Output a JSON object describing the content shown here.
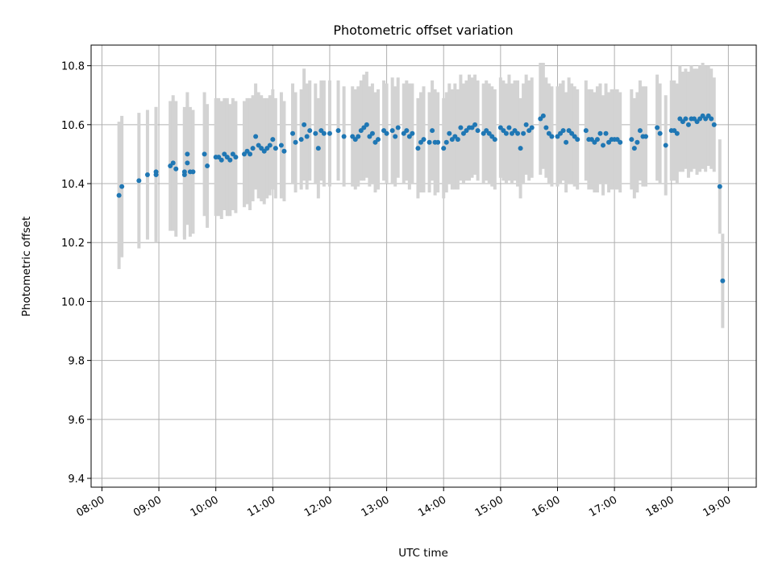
{
  "chart_data": {
    "type": "scatter",
    "title": "Photometric offset variation",
    "xlabel": "UTC time",
    "ylabel": "Photometric offset",
    "x_ticks": [
      "08:00",
      "09:00",
      "10:00",
      "11:00",
      "12:00",
      "13:00",
      "14:00",
      "15:00",
      "16:00",
      "17:00",
      "18:00",
      "19:00"
    ],
    "y_ticks": [
      "9.4",
      "9.6",
      "9.8",
      "10.0",
      "10.2",
      "10.4",
      "10.6",
      "10.8"
    ],
    "xlim_hours": [
      7.81,
      19.49
    ],
    "ylim": [
      9.37,
      10.87
    ],
    "grid": true,
    "colors": {
      "points": "#1f77b4",
      "errorbars": "#d3d3d3",
      "grid": "#b0b0b0"
    },
    "series": [
      {
        "x_hours": [
          8.3,
          8.35,
          8.65,
          8.8,
          8.95,
          8.95,
          9.2,
          9.25,
          9.3,
          9.45,
          9.45,
          9.5,
          9.5,
          9.55,
          9.6,
          9.8,
          9.85,
          10.0,
          10.05,
          10.1,
          10.15,
          10.2,
          10.25,
          10.3,
          10.35,
          10.5,
          10.55,
          10.6,
          10.65,
          10.7,
          10.75,
          10.8,
          10.85,
          10.9,
          10.95,
          11.0,
          11.05,
          11.15,
          11.2,
          11.35,
          11.4,
          11.5,
          11.55,
          11.6,
          11.65,
          11.75,
          11.8,
          11.85,
          11.9,
          12.0,
          12.15,
          12.25,
          12.4,
          12.45,
          12.5,
          12.55,
          12.6,
          12.65,
          12.7,
          12.75,
          12.8,
          12.85,
          12.95,
          13.0,
          13.1,
          13.15,
          13.2,
          13.3,
          13.35,
          13.4,
          13.45,
          13.55,
          13.6,
          13.65,
          13.75,
          13.8,
          13.85,
          13.9,
          14.0,
          14.05,
          14.1,
          14.15,
          14.2,
          14.25,
          14.3,
          14.35,
          14.4,
          14.45,
          14.5,
          14.55,
          14.6,
          14.7,
          14.75,
          14.8,
          14.85,
          14.9,
          15.0,
          15.05,
          15.1,
          15.15,
          15.2,
          15.25,
          15.3,
          15.35,
          15.4,
          15.45,
          15.5,
          15.55,
          15.7,
          15.75,
          15.8,
          15.85,
          15.9,
          16.0,
          16.05,
          16.1,
          16.15,
          16.2,
          16.25,
          16.3,
          16.35,
          16.5,
          16.55,
          16.6,
          16.65,
          16.7,
          16.75,
          16.8,
          16.85,
          16.9,
          16.95,
          17.0,
          17.05,
          17.1,
          17.3,
          17.35,
          17.4,
          17.45,
          17.5,
          17.55,
          17.75,
          17.8,
          17.9,
          18.0,
          18.05,
          18.1,
          18.15,
          18.2,
          18.25,
          18.3,
          18.35,
          18.4,
          18.45,
          18.5,
          18.55,
          18.6,
          18.65,
          18.7,
          18.75,
          18.85,
          18.9
        ],
        "y": [
          10.36,
          10.39,
          10.41,
          10.43,
          10.43,
          10.44,
          10.46,
          10.47,
          10.45,
          10.43,
          10.44,
          10.47,
          10.5,
          10.44,
          10.44,
          10.5,
          10.46,
          10.49,
          10.49,
          10.48,
          10.5,
          10.49,
          10.48,
          10.5,
          10.49,
          10.5,
          10.51,
          10.5,
          10.52,
          10.56,
          10.53,
          10.52,
          10.51,
          10.52,
          10.53,
          10.55,
          10.52,
          10.53,
          10.51,
          10.57,
          10.54,
          10.55,
          10.6,
          10.56,
          10.58,
          10.57,
          10.52,
          10.58,
          10.57,
          10.57,
          10.58,
          10.56,
          10.56,
          10.55,
          10.56,
          10.58,
          10.59,
          10.6,
          10.56,
          10.57,
          10.54,
          10.55,
          10.58,
          10.57,
          10.58,
          10.56,
          10.59,
          10.57,
          10.58,
          10.56,
          10.57,
          10.52,
          10.54,
          10.55,
          10.54,
          10.58,
          10.54,
          10.54,
          10.52,
          10.54,
          10.57,
          10.55,
          10.56,
          10.55,
          10.59,
          10.57,
          10.58,
          10.59,
          10.59,
          10.6,
          10.58,
          10.57,
          10.58,
          10.57,
          10.56,
          10.55,
          10.59,
          10.58,
          10.57,
          10.59,
          10.57,
          10.58,
          10.57,
          10.52,
          10.57,
          10.6,
          10.58,
          10.59,
          10.62,
          10.63,
          10.59,
          10.57,
          10.56,
          10.56,
          10.57,
          10.58,
          10.54,
          10.58,
          10.57,
          10.56,
          10.55,
          10.58,
          10.55,
          10.55,
          10.54,
          10.55,
          10.57,
          10.53,
          10.57,
          10.54,
          10.55,
          10.55,
          10.55,
          10.54,
          10.55,
          10.52,
          10.54,
          10.58,
          10.56,
          10.56,
          10.59,
          10.57,
          10.53,
          10.58,
          10.58,
          10.57,
          10.62,
          10.61,
          10.62,
          10.6,
          10.62,
          10.62,
          10.61,
          10.62,
          10.63,
          10.62,
          10.63,
          10.62,
          10.6,
          10.39,
          10.07
        ],
        "yerr": [
          0.25,
          0.24,
          0.23,
          0.22,
          0.23,
          0.22,
          0.22,
          0.23,
          0.23,
          0.22,
          0.22,
          0.21,
          0.21,
          0.22,
          0.21,
          0.21,
          0.21,
          0.2,
          0.2,
          0.2,
          0.19,
          0.2,
          0.19,
          0.19,
          0.19,
          0.18,
          0.18,
          0.19,
          0.18,
          0.18,
          0.18,
          0.18,
          0.18,
          0.17,
          0.17,
          0.17,
          0.17,
          0.18,
          0.17,
          0.17,
          0.17,
          0.17,
          0.19,
          0.18,
          0.17,
          0.17,
          0.17,
          0.17,
          0.18,
          0.18,
          0.17,
          0.17,
          0.17,
          0.17,
          0.17,
          0.17,
          0.18,
          0.18,
          0.17,
          0.17,
          0.17,
          0.17,
          0.17,
          0.17,
          0.18,
          0.17,
          0.17,
          0.17,
          0.17,
          0.18,
          0.17,
          0.17,
          0.17,
          0.18,
          0.17,
          0.17,
          0.18,
          0.17,
          0.17,
          0.17,
          0.17,
          0.17,
          0.18,
          0.17,
          0.18,
          0.17,
          0.17,
          0.18,
          0.17,
          0.17,
          0.17,
          0.17,
          0.17,
          0.17,
          0.17,
          0.17,
          0.17,
          0.17,
          0.17,
          0.18,
          0.17,
          0.17,
          0.18,
          0.17,
          0.17,
          0.17,
          0.17,
          0.17,
          0.19,
          0.18,
          0.17,
          0.17,
          0.17,
          0.17,
          0.17,
          0.17,
          0.17,
          0.18,
          0.17,
          0.17,
          0.17,
          0.17,
          0.17,
          0.17,
          0.17,
          0.18,
          0.17,
          0.17,
          0.17,
          0.17,
          0.17,
          0.17,
          0.17,
          0.17,
          0.17,
          0.17,
          0.17,
          0.17,
          0.17,
          0.17,
          0.18,
          0.17,
          0.17,
          0.17,
          0.17,
          0.17,
          0.18,
          0.17,
          0.17,
          0.18,
          0.18,
          0.17,
          0.18,
          0.18,
          0.18,
          0.18,
          0.17,
          0.17,
          0.16,
          0.16,
          0.16
        ]
      }
    ]
  }
}
